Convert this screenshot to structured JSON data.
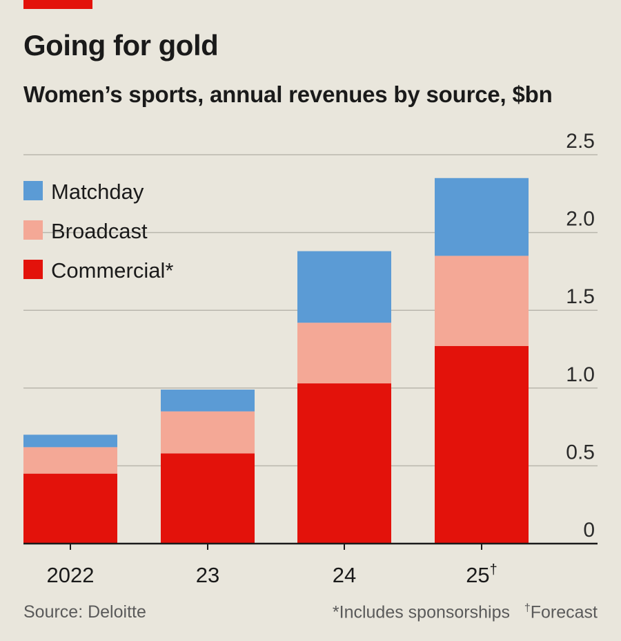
{
  "chart_data": {
    "type": "bar",
    "stacked": true,
    "title": "Going for gold",
    "subtitle": "Women’s sports, annual revenues by source, $bn",
    "categories": [
      "2022",
      "23",
      "24",
      "25"
    ],
    "category_marks": [
      "",
      "",
      "",
      "†"
    ],
    "series": [
      {
        "name": "Commercial*",
        "values": [
          0.45,
          0.58,
          1.03,
          1.27
        ],
        "color": "#e3120b"
      },
      {
        "name": "Broadcast",
        "values": [
          0.17,
          0.27,
          0.39,
          0.58
        ],
        "color": "#f4a896"
      },
      {
        "name": "Matchday",
        "values": [
          0.08,
          0.14,
          0.46,
          0.5
        ],
        "color": "#5b9bd5"
      }
    ],
    "legend_order": [
      "Matchday",
      "Broadcast",
      "Commercial*"
    ],
    "ylim": [
      0,
      2.5
    ],
    "yticks": [
      0,
      0.5,
      1.0,
      1.5,
      2.0,
      2.5
    ],
    "ytick_labels": [
      "0",
      "0.5",
      "1.0",
      "1.5",
      "2.0",
      "2.5"
    ],
    "y_axis_side": "right",
    "grid": true,
    "legend_position": "top-left"
  },
  "footer": {
    "source": "Source: Deloitte",
    "note_sponsorships": "*Includes sponsorships",
    "note_forecast_mark": "†",
    "note_forecast": "Forecast"
  },
  "colors": {
    "background": "#e9e6dc",
    "accent": "#e3120b",
    "gridline": "#b9b6ad",
    "axis": "#1a1a1a"
  }
}
